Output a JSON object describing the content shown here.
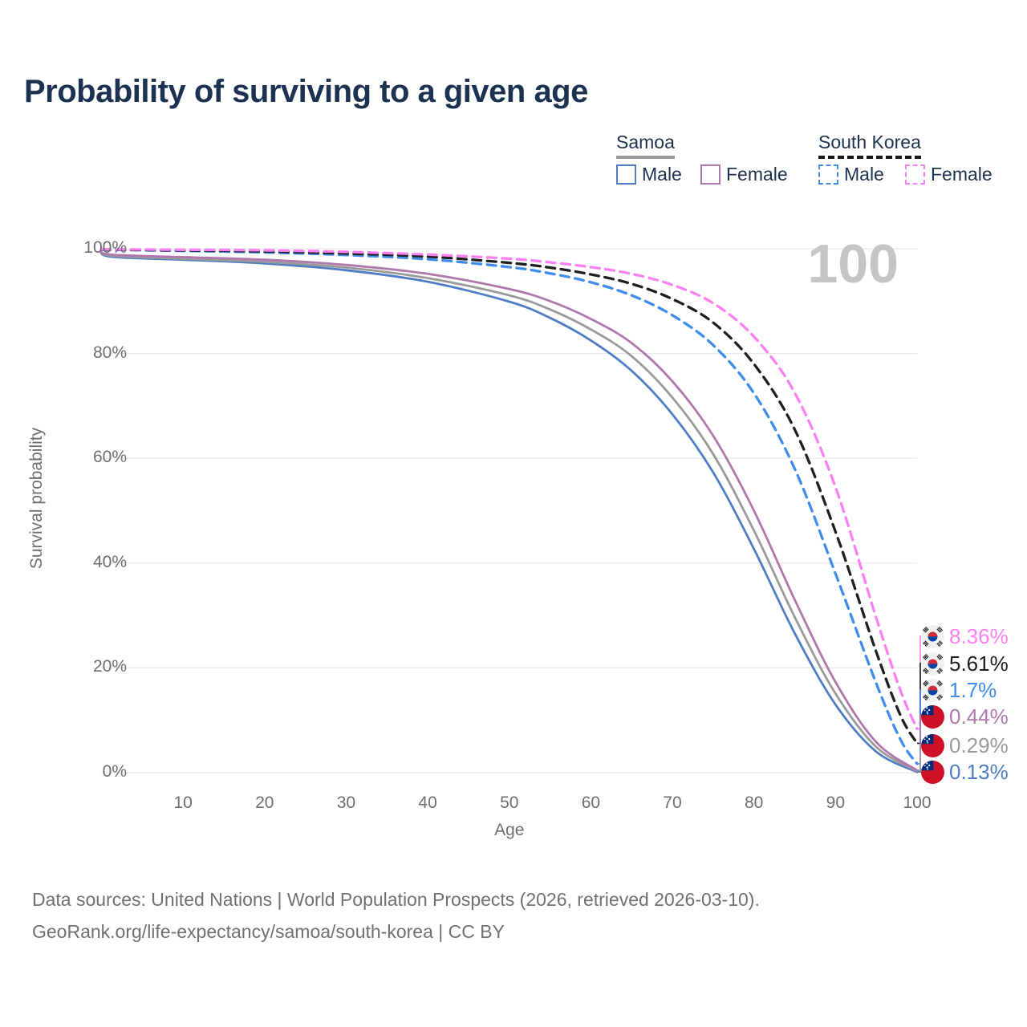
{
  "title": "Probability of surviving to a given age",
  "watermark_age": "100",
  "legend": {
    "groups": [
      {
        "name": "Samoa",
        "line": "solid",
        "underline_color": "#9a9a9a",
        "items": [
          {
            "label": "Male",
            "color": "#4f7dc4"
          },
          {
            "label": "Female",
            "color": "#b077ad"
          }
        ]
      },
      {
        "name": "South Korea",
        "line": "dashed",
        "underline_color": "#151515",
        "items": [
          {
            "label": "Male",
            "color": "#3f8cea"
          },
          {
            "label": "Female",
            "color": "#fb80f3"
          }
        ]
      }
    ]
  },
  "axes": {
    "y": {
      "label": "Survival probability",
      "tick_labels": [
        "0%",
        "20%",
        "40%",
        "60%",
        "80%",
        "100%"
      ],
      "tick_values": [
        0,
        20,
        40,
        60,
        80,
        100
      ]
    },
    "x": {
      "label": "Age",
      "tick_labels": [
        "10",
        "20",
        "30",
        "40",
        "50",
        "60",
        "70",
        "80",
        "90",
        "100"
      ],
      "tick_values": [
        10,
        20,
        30,
        40,
        50,
        60,
        70,
        80,
        90,
        100
      ]
    }
  },
  "end_labels": [
    {
      "flag": "south-korea",
      "value": "8.36%",
      "color": "#fb80f3"
    },
    {
      "flag": "south-korea",
      "value": "5.61%",
      "color": "#1f1f1f"
    },
    {
      "flag": "south-korea",
      "value": "1.7%",
      "color": "#3f8cea"
    },
    {
      "flag": "samoa",
      "value": "0.44%",
      "color": "#b077ad"
    },
    {
      "flag": "samoa",
      "value": "0.29%",
      "color": "#9a9a9a"
    },
    {
      "flag": "samoa",
      "value": "0.13%",
      "color": "#4f7dc4"
    }
  ],
  "footer": {
    "line1": "Data sources: United Nations | World Population Prospects (2026, retrieved 2026-03-10).",
    "line2": "GeoRank.org/life-expectancy/samoa/south-korea | CC BY"
  },
  "chart_data": {
    "type": "line",
    "title": "Probability of surviving to a given age",
    "xlabel": "Age",
    "ylabel": "Survival probability",
    "xlim": [
      0,
      100
    ],
    "ylim": [
      0,
      100
    ],
    "grid": "horizontal-only",
    "legend_position": "top-right",
    "colors": {
      "grid": "#e8e8e8",
      "axis_text": "#6e6e6e",
      "title": "#1c3250",
      "watermark": "#c5c5c5"
    },
    "series": [
      {
        "name": "South Korea Female",
        "country": "South Korea",
        "sex": "female",
        "line": "dashed",
        "color": "#fb80f3",
        "end_value_pct": 8.36,
        "end_label": "8.36%",
        "points": [
          [
            0,
            99.9
          ],
          [
            10,
            99.8
          ],
          [
            20,
            99.7
          ],
          [
            30,
            99.4
          ],
          [
            40,
            98.9
          ],
          [
            50,
            98.1
          ],
          [
            55,
            97.4
          ],
          [
            60,
            96.5
          ],
          [
            65,
            95.2
          ],
          [
            70,
            93.1
          ],
          [
            75,
            89.6
          ],
          [
            80,
            83.2
          ],
          [
            85,
            72.5
          ],
          [
            90,
            54.5
          ],
          [
            95,
            29.5
          ],
          [
            98,
            15.5
          ],
          [
            100,
            8.36
          ]
        ]
      },
      {
        "name": "South Korea Both sexes",
        "country": "South Korea",
        "sex": "both",
        "line": "dashed",
        "color": "#1f1f1f",
        "end_value_pct": 5.61,
        "end_label": "5.61%",
        "points": [
          [
            0,
            99.85
          ],
          [
            10,
            99.7
          ],
          [
            20,
            99.5
          ],
          [
            30,
            99.1
          ],
          [
            40,
            98.5
          ],
          [
            50,
            97.3
          ],
          [
            55,
            96.4
          ],
          [
            60,
            95.1
          ],
          [
            65,
            93.3
          ],
          [
            70,
            90.4
          ],
          [
            75,
            85.9
          ],
          [
            80,
            78.0
          ],
          [
            85,
            65.5
          ],
          [
            90,
            46.0
          ],
          [
            95,
            23.0
          ],
          [
            98,
            10.8
          ],
          [
            100,
            5.61
          ]
        ]
      },
      {
        "name": "South Korea Male",
        "country": "South Korea",
        "sex": "male",
        "line": "dashed",
        "color": "#3f8cea",
        "end_value_pct": 1.7,
        "end_label": "1.7%",
        "points": [
          [
            0,
            99.8
          ],
          [
            10,
            99.6
          ],
          [
            20,
            99.3
          ],
          [
            30,
            98.8
          ],
          [
            40,
            98.0
          ],
          [
            50,
            96.5
          ],
          [
            55,
            95.3
          ],
          [
            60,
            93.6
          ],
          [
            65,
            91.1
          ],
          [
            70,
            87.3
          ],
          [
            75,
            81.6
          ],
          [
            80,
            72.4
          ],
          [
            85,
            58.0
          ],
          [
            90,
            38.0
          ],
          [
            95,
            17.0
          ],
          [
            98,
            6.2
          ],
          [
            100,
            1.7
          ]
        ]
      },
      {
        "name": "Samoa Female",
        "country": "Samoa",
        "sex": "female",
        "line": "solid",
        "color": "#b077ad",
        "end_value_pct": 0.44,
        "end_label": "0.44%",
        "points": [
          [
            0,
            100
          ],
          [
            1,
            98.9
          ],
          [
            10,
            98.4
          ],
          [
            20,
            97.9
          ],
          [
            30,
            96.9
          ],
          [
            40,
            95.2
          ],
          [
            50,
            92.3
          ],
          [
            55,
            90.0
          ],
          [
            60,
            86.6
          ],
          [
            65,
            82.0
          ],
          [
            70,
            74.7
          ],
          [
            75,
            64.3
          ],
          [
            80,
            50.0
          ],
          [
            85,
            33.0
          ],
          [
            90,
            17.3
          ],
          [
            95,
            5.8
          ],
          [
            100,
            0.44
          ]
        ]
      },
      {
        "name": "Samoa Both sexes",
        "country": "Samoa",
        "sex": "both",
        "line": "solid",
        "color": "#9a9a9a",
        "end_value_pct": 0.29,
        "end_label": "0.29%",
        "points": [
          [
            0,
            100
          ],
          [
            1,
            98.7
          ],
          [
            10,
            98.1
          ],
          [
            20,
            97.5
          ],
          [
            30,
            96.4
          ],
          [
            40,
            94.4
          ],
          [
            50,
            91.1
          ],
          [
            55,
            88.4
          ],
          [
            60,
            84.6
          ],
          [
            65,
            79.5
          ],
          [
            70,
            71.6
          ],
          [
            75,
            60.8
          ],
          [
            80,
            46.2
          ],
          [
            85,
            29.7
          ],
          [
            90,
            15.1
          ],
          [
            95,
            4.9
          ],
          [
            100,
            0.29
          ]
        ]
      },
      {
        "name": "Samoa Male",
        "country": "Samoa",
        "sex": "male",
        "line": "solid",
        "color": "#4f7dc4",
        "end_value_pct": 0.13,
        "end_label": "0.13%",
        "points": [
          [
            0,
            100
          ],
          [
            1,
            98.5
          ],
          [
            10,
            97.9
          ],
          [
            20,
            97.2
          ],
          [
            30,
            95.9
          ],
          [
            40,
            93.7
          ],
          [
            50,
            89.9
          ],
          [
            55,
            86.8
          ],
          [
            60,
            82.5
          ],
          [
            65,
            76.7
          ],
          [
            70,
            68.4
          ],
          [
            75,
            57.3
          ],
          [
            80,
            42.7
          ],
          [
            85,
            26.6
          ],
          [
            90,
            13.0
          ],
          [
            95,
            4.0
          ],
          [
            100,
            0.13
          ]
        ]
      }
    ]
  }
}
